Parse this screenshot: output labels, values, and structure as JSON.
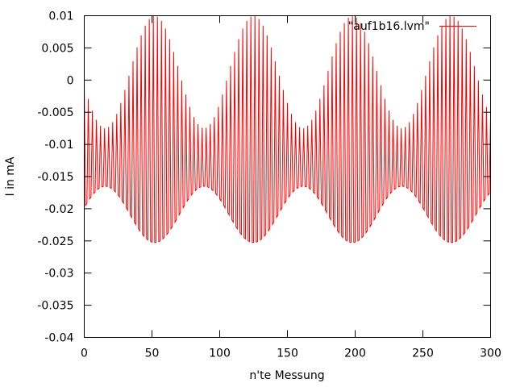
{
  "chart_data": {
    "type": "line",
    "title": "",
    "xlabel": "n'te Messung",
    "ylabel": "I in mA",
    "xlim": [
      0,
      300
    ],
    "ylim": [
      -0.04,
      0.01
    ],
    "xticks": [
      0,
      50,
      100,
      150,
      200,
      250,
      300
    ],
    "yticks": [
      -0.04,
      -0.035,
      -0.03,
      -0.025,
      -0.02,
      -0.015,
      -0.01,
      -0.005,
      0,
      0.005,
      0.01
    ],
    "xtick_labels": [
      "0",
      "50",
      "100",
      "150",
      "200",
      "250",
      "300"
    ],
    "ytick_labels": [
      "-0.04",
      "-0.035",
      "-0.03",
      "-0.025",
      "-0.02",
      "-0.015",
      "-0.01",
      "-0.005",
      "0",
      "0.005",
      "0.01"
    ],
    "grid": false,
    "legend_position": "top-right",
    "line_color": "#ff0000",
    "series": [
      {
        "name": "\"auf1b16.lvm\"",
        "color": "#ff0000",
        "signal": {
          "offset": -0.0135,
          "carrier_period": 3,
          "amplitude_min": 0.006,
          "amplitude_max": 0.0235,
          "beat_period": 73,
          "beat_peak_at": 52,
          "n_points": 301
        }
      }
    ]
  }
}
